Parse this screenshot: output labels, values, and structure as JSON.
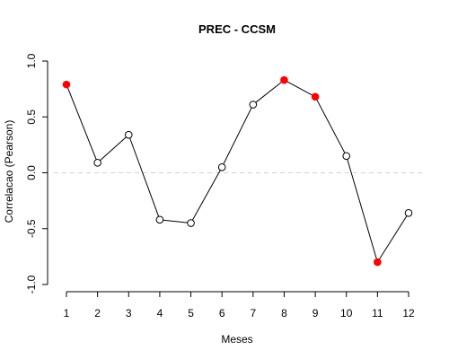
{
  "chart_data": {
    "type": "line",
    "title": "PREC - CCSM",
    "xlabel": "Meses",
    "ylabel": "Correlacao (Pearson)",
    "x": [
      1,
      2,
      3,
      4,
      5,
      6,
      7,
      8,
      9,
      10,
      11,
      12
    ],
    "xticks": [
      "1",
      "2",
      "3",
      "4",
      "5",
      "6",
      "7",
      "8",
      "9",
      "10",
      "11",
      "12"
    ],
    "xlim": [
      1,
      12
    ],
    "yticks": [
      "-1.0",
      "-0.5",
      "0.0",
      "0.5",
      "1.0"
    ],
    "ylim": [
      -1.0,
      1.0
    ],
    "series": [
      {
        "values": [
          0.79,
          0.09,
          0.34,
          -0.42,
          -0.45,
          0.05,
          0.61,
          0.83,
          0.68,
          0.15,
          -0.8,
          -0.36
        ],
        "highlighted": [
          true,
          false,
          false,
          false,
          false,
          false,
          false,
          true,
          true,
          false,
          true,
          false
        ],
        "line_color": "#000000",
        "highlight_color": "#ff0000"
      }
    ],
    "reference_line": {
      "y": 0.0,
      "color": "#d3d3d3",
      "style": "dashed"
    },
    "grid": false,
    "legend": "none"
  }
}
